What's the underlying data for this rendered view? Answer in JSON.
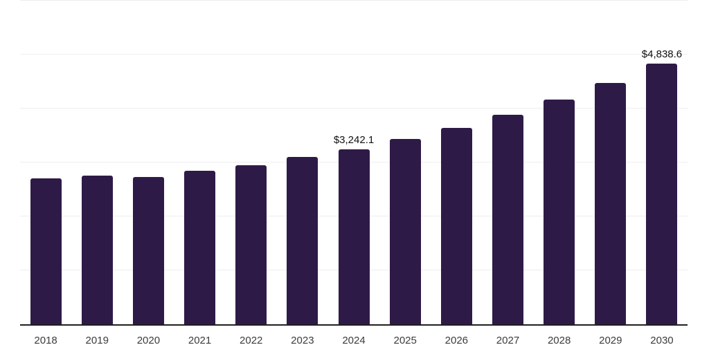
{
  "chart_data": {
    "type": "bar",
    "title": "",
    "xlabel": "",
    "ylabel": "",
    "categories": [
      "2018",
      "2019",
      "2020",
      "2021",
      "2022",
      "2023",
      "2024",
      "2025",
      "2026",
      "2027",
      "2028",
      "2029",
      "2030"
    ],
    "values": [
      2700,
      2760,
      2725,
      2840,
      2945,
      3100,
      3242.1,
      3440,
      3645,
      3885,
      4170,
      4480,
      4838.6
    ],
    "value_labels": [
      {
        "category": "2024",
        "text": "$3,242.1"
      },
      {
        "category": "2030",
        "text": "$4,838.6"
      }
    ],
    "ylim": [
      0,
      6000
    ],
    "gridline_interval": 1000,
    "grid": true,
    "y_tick_labels_visible": false,
    "legend": "none",
    "colors": {
      "bar": "#2e1a47",
      "gridline": "#eeeeee",
      "axis_line": "#1f1f1f",
      "value_label": "#101010",
      "tick_label": "#3b3b3b",
      "background": "#ffffff"
    }
  }
}
